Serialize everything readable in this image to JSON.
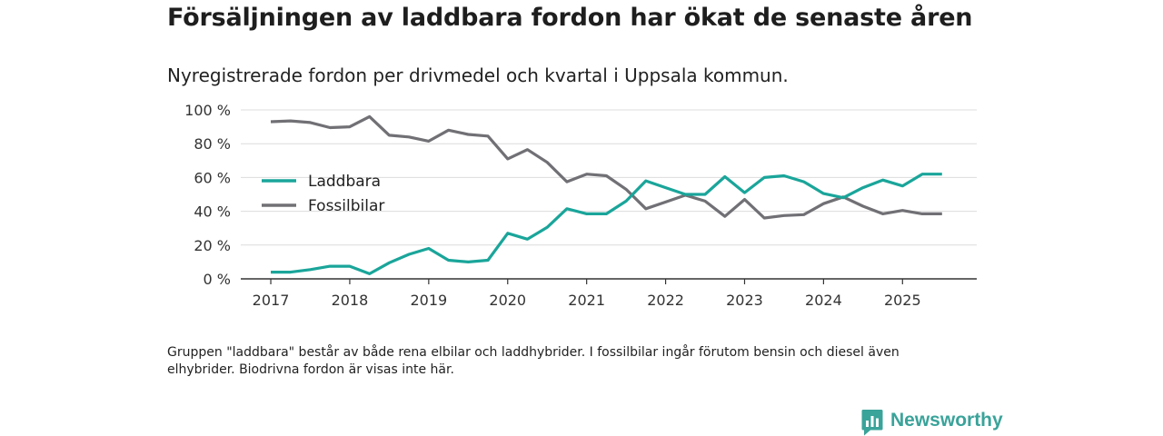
{
  "header": {
    "title": "Försäljningen av laddbara fordon har ökat de senaste åren",
    "subtitle": "Nyregistrerade fordon per drivmedel och kvartal i Uppsala kommun."
  },
  "footer": {
    "note": "Gruppen \"laddbara\" består av både rena elbilar och laddhybrider. I fossilbilar ingår förutom bensin och diesel även elhybrider. Biodrivna fordon är visas inte här.",
    "brand": "Newsworthy"
  },
  "chart_data": {
    "type": "line",
    "title": "Försäljningen av laddbara fordon har ökat de senaste åren",
    "subtitle": "Nyregistrerade fordon per drivmedel och kvartal i Uppsala kommun.",
    "xlabel": "",
    "ylabel": "",
    "x": [
      2017.0,
      2017.25,
      2017.5,
      2017.75,
      2018.0,
      2018.25,
      2018.5,
      2018.75,
      2019.0,
      2019.25,
      2019.5,
      2019.75,
      2020.0,
      2020.25,
      2020.5,
      2020.75,
      2021.0,
      2021.25,
      2021.5,
      2021.75,
      2022.0,
      2022.25,
      2022.5,
      2022.75,
      2023.0,
      2023.25,
      2023.5,
      2023.75,
      2024.0,
      2024.25,
      2024.5,
      2024.75,
      2025.0,
      2025.25,
      2025.5
    ],
    "xlim": [
      2016.62,
      2025.94
    ],
    "xticks": [
      2017,
      2018,
      2019,
      2020,
      2021,
      2022,
      2023,
      2024,
      2025
    ],
    "xtick_labels": [
      "2017",
      "2018",
      "2019",
      "2020",
      "2021",
      "2022",
      "2023",
      "2024",
      "2025"
    ],
    "ylim": [
      0,
      100
    ],
    "yticks": [
      0,
      20,
      40,
      60,
      80,
      100
    ],
    "ytick_labels": [
      "0 %",
      "20 %",
      "40 %",
      "60 %",
      "80 %",
      "100 %"
    ],
    "grid": true,
    "legend_position": "middle-left",
    "series": [
      {
        "name": "Laddbara",
        "color": "#1aa59a",
        "values": [
          4,
          4,
          5.5,
          7.5,
          7.5,
          3,
          9.5,
          14.5,
          18,
          11,
          10,
          11,
          27,
          23.5,
          30.5,
          41.5,
          38.5,
          38.5,
          46,
          58,
          54,
          50,
          50,
          60.5,
          51,
          60,
          61,
          57.5,
          50.5,
          48,
          54,
          58.5,
          55,
          62,
          62
        ]
      },
      {
        "name": "Fossilbilar",
        "color": "#707075",
        "values": [
          93,
          93.5,
          92.5,
          89.5,
          90,
          96,
          85,
          84,
          81.5,
          88,
          85.5,
          84.5,
          71,
          76.5,
          69,
          57.5,
          62,
          61,
          53,
          41.5,
          45.5,
          49.5,
          46,
          37,
          47,
          36,
          37.5,
          38,
          44.5,
          48.5,
          43,
          38.5,
          40.5,
          38.5,
          38.5
        ]
      }
    ]
  }
}
